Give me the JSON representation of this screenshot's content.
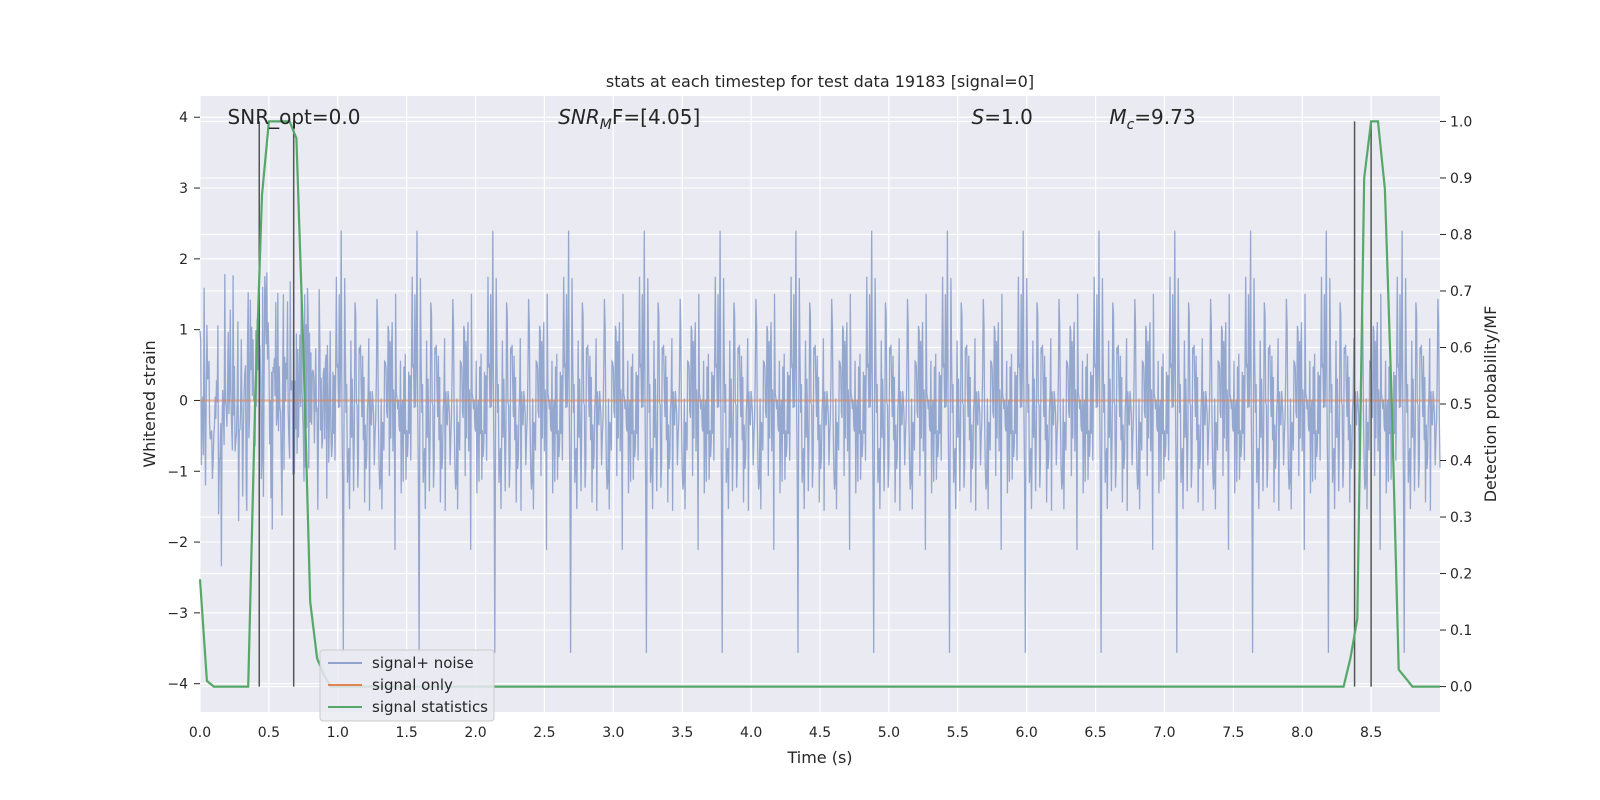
{
  "chart_data": {
    "type": "line",
    "title": "stats at each timestep for test data 19183 [signal=0]",
    "xlabel": "Time (s)",
    "ylabel_left": "Whitened strain",
    "ylabel_right": "Detection probability/MF",
    "xlim": [
      0.0,
      9.0
    ],
    "ylim_left": [
      -4.4,
      4.3
    ],
    "ylim_right": [
      -0.045,
      1.045
    ],
    "x_ticks": [
      "0.0",
      "0.5",
      "1.0",
      "1.5",
      "2.0",
      "2.5",
      "3.0",
      "3.5",
      "4.0",
      "4.5",
      "5.0",
      "5.5",
      "6.0",
      "6.5",
      "7.0",
      "7.5",
      "8.0",
      "8.5"
    ],
    "y_ticks_left": [
      "−4",
      "−3",
      "−2",
      "−1",
      "0",
      "1",
      "2",
      "3",
      "4"
    ],
    "y_ticks_right": [
      "0.0",
      "0.1",
      "0.2",
      "0.3",
      "0.4",
      "0.5",
      "0.6",
      "0.7",
      "0.8",
      "0.9",
      "1.0"
    ],
    "grid": true,
    "legend_placement": "lower-left",
    "annotations": [
      {
        "text": "SNR_opt=0.0",
        "x": 0.2,
        "y": 4.0
      },
      {
        "base": "SNR",
        "sub": "M",
        "rest": "F=[4.05]",
        "x": 2.6,
        "y": 4.0
      },
      {
        "base": "S",
        "rest": "=1.0",
        "x": 5.6,
        "y": 4.0
      },
      {
        "base": "M",
        "sub": "c",
        "rest": "=9.73",
        "x": 6.6,
        "y": 4.0
      }
    ],
    "series": [
      {
        "name": "signal+ noise",
        "color": "#8fa3cc",
        "axis": "left",
        "noise_std": 0.9,
        "sample_rate_hz": 200,
        "min_value": -4.0,
        "max_value": 3.8
      },
      {
        "name": "signal only",
        "color": "#dd8452",
        "axis": "left",
        "x": [
          0.0,
          9.0
        ],
        "y": [
          0.0,
          0.0
        ]
      },
      {
        "name": "signal statistics",
        "color": "#55a868",
        "axis": "right",
        "x": [
          0.0,
          0.05,
          0.1,
          0.2,
          0.3,
          0.35,
          0.4,
          0.45,
          0.5,
          0.55,
          0.6,
          0.65,
          0.7,
          0.75,
          0.8,
          0.85,
          0.9,
          0.95,
          1.0,
          1.5,
          2.0,
          3.0,
          4.0,
          5.0,
          6.0,
          7.0,
          8.0,
          8.3,
          8.35,
          8.4,
          8.45,
          8.5,
          8.55,
          8.6,
          8.65,
          8.7,
          8.75,
          8.8,
          8.9,
          9.0
        ],
        "y": [
          0.19,
          0.01,
          0.0,
          0.0,
          0.0,
          0.0,
          0.5,
          0.87,
          1.0,
          1.0,
          1.0,
          1.0,
          0.97,
          0.6,
          0.15,
          0.05,
          0.02,
          0.0,
          0.0,
          0.0,
          0.0,
          0.0,
          0.0,
          0.0,
          0.0,
          0.0,
          0.0,
          0.0,
          0.05,
          0.12,
          0.9,
          1.0,
          1.0,
          0.88,
          0.5,
          0.03,
          0.015,
          0.0,
          0.0,
          0.0
        ]
      }
    ],
    "vertical_lines": [
      {
        "x": 0.43,
        "color": "#555555"
      },
      {
        "x": 0.68,
        "color": "#555555"
      },
      {
        "x": 8.38,
        "color": "#555555"
      },
      {
        "x": 8.5,
        "color": "#555555"
      }
    ]
  }
}
